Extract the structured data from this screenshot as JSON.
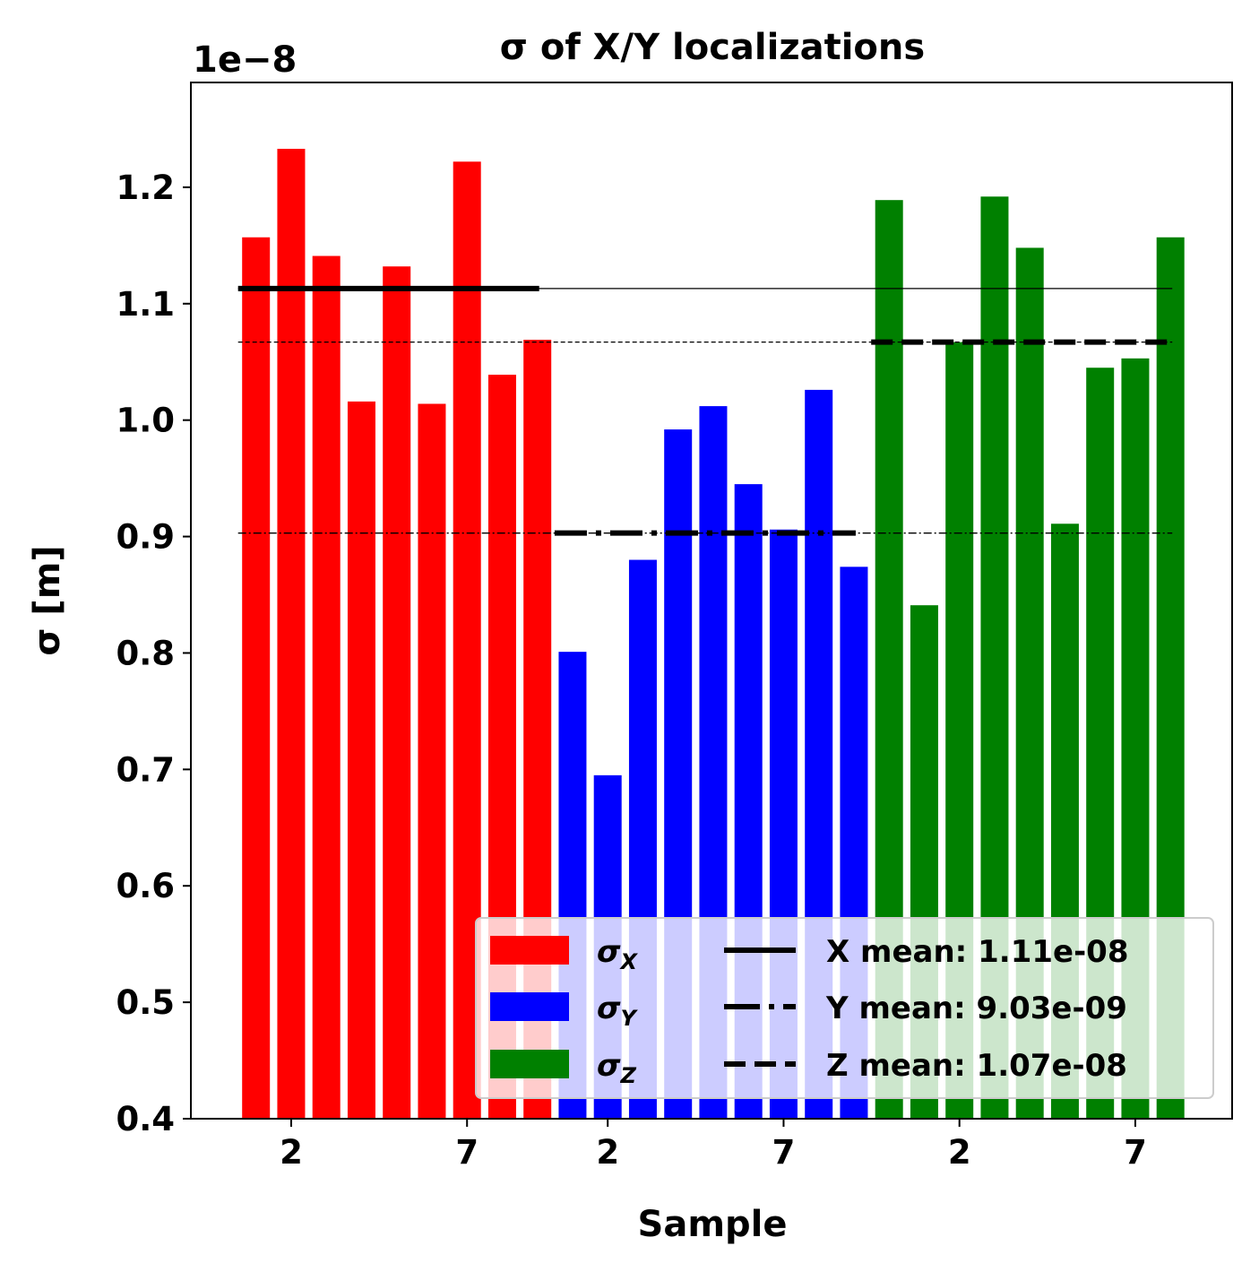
{
  "chart_data": {
    "type": "bar",
    "title": "σ of X/Y localizations",
    "xlabel": "Sample",
    "ylabel": "σ [m]",
    "offset_label": "1e−8",
    "ylim": [
      0.4,
      1.29
    ],
    "grid": false,
    "legend_position": "lower-right",
    "y_ticks": [
      "0.4",
      "0.5",
      "0.6",
      "0.7",
      "0.8",
      "0.9",
      "1.0",
      "1.1",
      "1.2"
    ],
    "x_ticks": [
      {
        "sample": 2,
        "label": "2"
      },
      {
        "sample": 7,
        "label": "7"
      },
      {
        "sample": 11,
        "label": "2"
      },
      {
        "sample": 16,
        "label": "7"
      },
      {
        "sample": 21,
        "label": "2"
      },
      {
        "sample": 26,
        "label": "7"
      }
    ],
    "series": [
      {
        "name": "σX",
        "base": "σ",
        "sub": "X",
        "color": "#ff0000",
        "x": [
          1,
          2,
          3,
          4,
          5,
          6,
          7,
          8,
          9
        ],
        "values": [
          1.157,
          1.233,
          1.141,
          1.016,
          1.132,
          1.014,
          1.222,
          1.039,
          1.069
        ]
      },
      {
        "name": "σY",
        "base": "σ",
        "sub": "Y",
        "color": "#0000ff",
        "x": [
          10,
          11,
          12,
          13,
          14,
          15,
          16,
          17,
          18
        ],
        "values": [
          0.801,
          0.695,
          0.88,
          0.992,
          1.012,
          0.945,
          0.906,
          1.026,
          0.874
        ]
      },
      {
        "name": "σZ",
        "base": "σ",
        "sub": "Z",
        "color": "#008000",
        "x": [
          19,
          20,
          21,
          22,
          23,
          24,
          25,
          26,
          27
        ],
        "values": [
          1.189,
          0.841,
          1.067,
          1.192,
          1.148,
          0.911,
          1.045,
          1.053,
          1.157
        ]
      }
    ],
    "mean_lines": [
      {
        "label": "X mean: 1.11e-08",
        "value": 1.113,
        "style": "solid",
        "x_start": 1,
        "x_end": 27,
        "thick_start": 1,
        "thick_end": 9
      },
      {
        "label": "Y mean: 9.03e-09",
        "value": 0.903,
        "style": "dashdot",
        "x_start": 1,
        "x_end": 27,
        "thick_start": 10,
        "thick_end": 18
      },
      {
        "label": "Z mean: 1.07e-08",
        "value": 1.067,
        "style": "dashed",
        "x_start": 1,
        "x_end": 27,
        "thick_start": 19,
        "thick_end": 27
      }
    ]
  }
}
